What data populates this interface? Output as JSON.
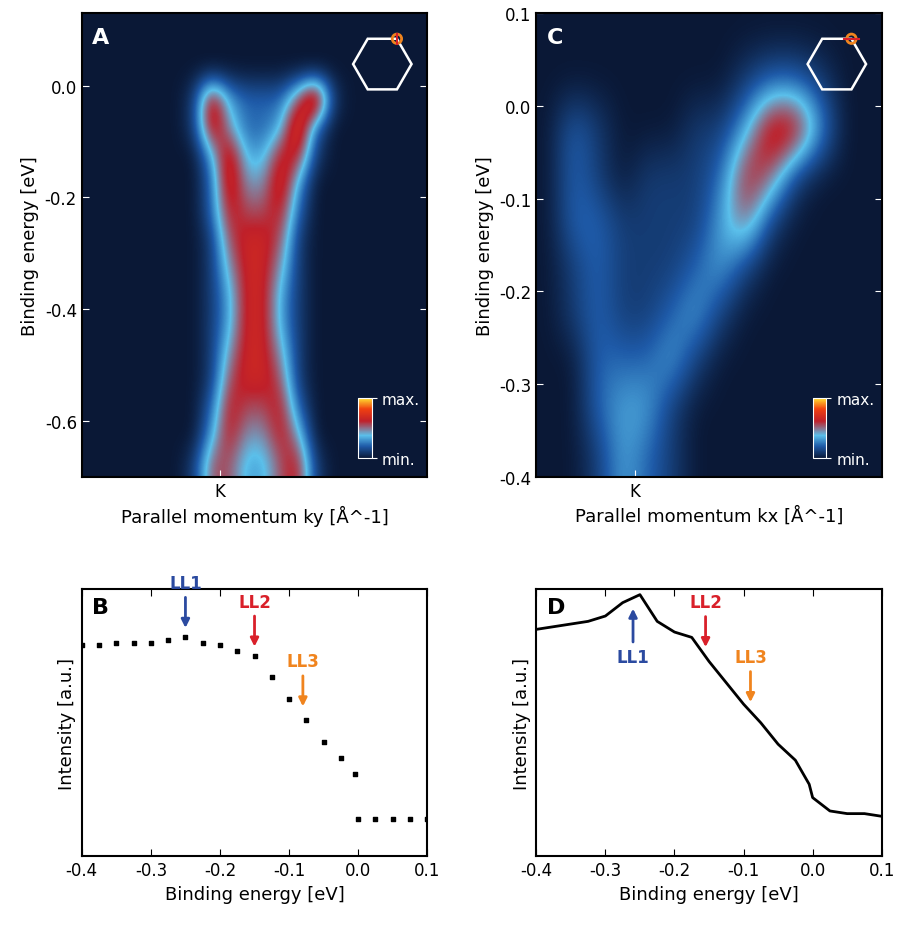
{
  "chart_data": [
    {
      "panel": "A",
      "type": "heatmap",
      "x_label": "Parallel momentum ky [Å^-1]",
      "y_label": "Binding energy [eV]",
      "xlim": [
        -0.2,
        0.3
      ],
      "ylim": [
        -0.7,
        0.13
      ],
      "xticks": [
        {
          "value": 0,
          "label": "K"
        }
      ],
      "yticks": [
        0.0,
        -0.2,
        -0.4,
        -0.6
      ],
      "x_edges": [
        -0.2,
        0.3
      ],
      "y_edges": [
        -0.7,
        0.1
      ],
      "cells": [
        [
          0,
          0,
          0,
          0,
          0,
          0,
          1,
          5,
          5,
          3,
          3,
          5,
          6,
          1,
          0,
          0,
          0,
          0,
          0,
          0
        ],
        [
          0,
          0,
          0,
          0,
          0,
          0,
          0,
          3,
          6,
          4,
          4,
          6,
          4,
          0,
          0,
          0,
          0,
          0,
          0,
          0
        ],
        [
          0,
          0,
          0,
          0,
          0,
          0,
          0,
          2,
          6,
          5,
          5,
          6,
          2,
          0,
          0,
          0,
          0,
          0,
          0,
          0
        ],
        [
          0,
          0,
          0,
          0,
          0,
          0,
          0,
          1,
          5,
          6,
          6,
          5,
          1,
          0,
          0,
          0,
          0,
          0,
          0,
          0
        ],
        [
          0,
          0,
          0,
          0,
          0,
          0,
          0,
          1,
          4,
          6,
          6,
          4,
          1,
          0,
          0,
          0,
          0,
          0,
          0,
          0
        ],
        [
          0,
          0,
          0,
          0,
          0,
          0,
          0,
          1,
          3,
          6,
          6,
          3,
          1,
          0,
          0,
          0,
          0,
          0,
          0,
          0
        ],
        [
          0,
          0,
          0,
          0,
          0,
          0,
          0,
          1,
          3,
          6,
          6,
          3,
          1,
          0,
          0,
          0,
          0,
          0,
          0,
          0
        ],
        [
          0,
          0,
          0,
          0,
          0,
          0,
          0,
          1,
          4,
          6,
          6,
          4,
          1,
          0,
          0,
          0,
          0,
          0,
          0,
          0
        ],
        [
          0,
          0,
          0,
          0,
          0,
          0,
          0,
          1,
          5,
          6,
          6,
          5,
          1,
          0,
          0,
          0,
          0,
          0,
          0,
          0
        ],
        [
          0,
          0,
          0,
          0,
          0,
          0,
          0,
          2,
          6,
          5,
          5,
          6,
          2,
          0,
          0,
          0,
          0,
          0,
          0,
          0
        ],
        [
          0,
          0,
          0,
          0,
          0,
          0,
          0,
          2,
          7,
          4,
          4,
          7,
          3,
          0,
          0,
          0,
          0,
          0,
          0,
          0
        ],
        [
          0,
          0,
          0,
          0,
          0,
          0,
          0,
          3,
          7,
          3,
          3,
          6,
          6,
          1,
          0,
          0,
          0,
          0,
          0,
          0
        ],
        [
          0,
          0,
          0,
          0,
          0,
          0,
          1,
          7,
          4,
          2,
          2,
          3,
          8,
          2,
          0,
          0,
          0,
          0,
          0,
          0
        ],
        [
          0,
          0,
          0,
          0,
          0,
          0,
          1,
          7,
          3,
          2,
          2,
          2,
          5,
          9,
          1,
          0,
          0,
          0,
          0,
          0
        ],
        [
          0,
          0,
          0,
          0,
          0,
          0,
          0,
          0,
          0,
          0,
          0,
          0,
          0,
          0,
          0,
          0,
          0,
          0,
          0,
          0
        ],
        [
          0,
          0,
          0,
          0,
          0,
          0,
          0,
          0,
          0,
          0,
          0,
          0,
          0,
          0,
          0,
          0,
          0,
          0,
          0,
          0
        ]
      ],
      "colorbar": {
        "range": [
          0,
          9
        ],
        "ticks": [
          {
            "value": 0,
            "label": "min."
          },
          {
            "value": 9,
            "label": "max."
          }
        ]
      }
    },
    {
      "panel": "C",
      "type": "heatmap",
      "x_label": "Parallel momentum kx [Å^-1]",
      "y_label": "Binding energy [eV]",
      "xlim": [
        -0.1,
        0.25
      ],
      "ylim": [
        -0.4,
        0.1
      ],
      "xticks": [
        {
          "value": 0,
          "label": "K"
        }
      ],
      "yticks": [
        0.1,
        0.0,
        -0.1,
        -0.2,
        -0.3,
        -0.4
      ],
      "x_edges": [
        -0.1,
        0.25
      ],
      "y_edges": [
        -0.4,
        0.1
      ],
      "cells": [
        [
          0,
          0,
          1,
          3,
          2,
          1,
          0,
          0,
          0,
          0,
          0,
          0,
          0,
          0
        ],
        [
          0,
          0,
          2,
          3,
          3,
          1,
          0,
          0,
          0,
          0,
          0,
          0,
          0,
          0
        ],
        [
          0,
          0,
          2,
          2,
          2,
          3,
          1,
          0,
          0,
          0,
          0,
          0,
          0,
          0
        ],
        [
          0,
          1,
          2,
          1,
          1,
          2,
          3,
          1,
          0,
          0,
          0,
          0,
          0,
          0
        ],
        [
          0,
          1,
          2,
          1,
          1,
          1,
          2,
          3,
          1,
          0,
          0,
          0,
          0,
          0
        ],
        [
          0,
          2,
          2,
          1,
          1,
          1,
          1,
          3,
          5,
          1,
          0,
          0,
          0,
          0
        ],
        [
          0,
          2,
          1,
          0,
          1,
          1,
          1,
          2,
          6,
          5,
          1,
          0,
          0,
          0
        ],
        [
          0,
          2,
          1,
          0,
          0,
          0,
          1,
          1,
          3,
          7,
          7,
          3,
          0,
          0
        ],
        [
          0,
          0,
          0,
          0,
          0,
          0,
          0,
          0,
          1,
          2,
          2,
          1,
          0,
          0
        ],
        [
          0,
          0,
          0,
          0,
          0,
          0,
          0,
          0,
          0,
          0,
          0,
          0,
          0,
          0
        ]
      ],
      "colorbar": {
        "range": [
          0,
          9
        ],
        "ticks": [
          {
            "value": 0,
            "label": "min."
          },
          {
            "value": 9,
            "label": "max."
          }
        ]
      }
    },
    {
      "panel": "B",
      "type": "scatter",
      "marker": "s",
      "color": "#000000",
      "x_label": "Binding energy [eV]",
      "y_label": "Intensity [a.u.]",
      "xlim": [
        -0.4,
        0.1
      ],
      "ylim": [
        0,
        1
      ],
      "xticks": [
        -0.4,
        -0.3,
        -0.2,
        -0.1,
        0.0,
        0.1
      ],
      "yticks": [],
      "tick_labels": "x",
      "x": [
        -0.4,
        -0.375,
        -0.35,
        -0.325,
        -0.3,
        -0.275,
        -0.25,
        -0.225,
        -0.2,
        -0.175,
        -0.15,
        -0.125,
        -0.1,
        -0.075,
        -0.05,
        -0.025,
        -0.005,
        0.0,
        0.025,
        0.05,
        0.075,
        0.1
      ],
      "values": [
        0.79,
        0.79,
        0.8,
        0.8,
        0.8,
        0.81,
        0.82,
        0.8,
        0.79,
        0.77,
        0.75,
        0.67,
        0.59,
        0.51,
        0.43,
        0.37,
        0.31,
        0.14,
        0.14,
        0.14,
        0.14,
        0.14
      ],
      "annotations": [
        {
          "text": "LL1",
          "x": -0.25,
          "color": "#2b4aa0"
        },
        {
          "text": "LL2",
          "x": -0.15,
          "color": "#d9202a"
        },
        {
          "text": "LL3",
          "x": -0.08,
          "color": "#f0841e"
        }
      ]
    },
    {
      "panel": "D",
      "type": "line",
      "line_style": "solid",
      "color": "#000000",
      "x_label": "Binding energy [eV]",
      "y_label": "Intensity [a.u.]",
      "xlim": [
        -0.4,
        0.1
      ],
      "ylim": [
        0,
        1
      ],
      "xticks": [
        -0.4,
        -0.3,
        -0.2,
        -0.1,
        0.0,
        0.1
      ],
      "yticks": [],
      "tick_labels": "x",
      "x": [
        -0.4,
        -0.375,
        -0.35,
        -0.325,
        -0.3,
        -0.275,
        -0.25,
        -0.225,
        -0.2,
        -0.175,
        -0.15,
        -0.125,
        -0.1,
        -0.075,
        -0.05,
        -0.025,
        -0.005,
        0.0,
        0.025,
        0.05,
        0.075,
        0.1
      ],
      "values": [
        0.85,
        0.86,
        0.87,
        0.88,
        0.9,
        0.95,
        0.98,
        0.88,
        0.84,
        0.82,
        0.73,
        0.65,
        0.57,
        0.5,
        0.42,
        0.36,
        0.27,
        0.22,
        0.17,
        0.16,
        0.16,
        0.15
      ],
      "annotations": [
        {
          "text": "LL1",
          "x": -0.26,
          "color": "#2b4aa0"
        },
        {
          "text": "LL2",
          "x": -0.155,
          "color": "#d9202a"
        },
        {
          "text": "LL3",
          "x": -0.09,
          "color": "#f0841e"
        }
      ]
    }
  ]
}
